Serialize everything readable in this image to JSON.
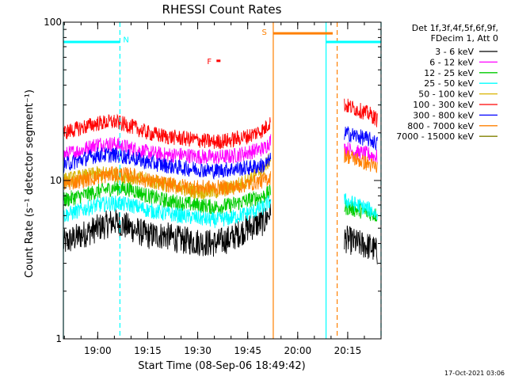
{
  "chart_data": {
    "type": "line",
    "title": "RHESSI Count Rates",
    "xlabel": "Start Time (08-Sep-06 18:49:42)",
    "ylabel": "Count Rate (s⁻¹ detector segment⁻¹)",
    "y_scale": "log",
    "ylim": [
      1,
      100
    ],
    "y_ticks": [
      {
        "value": 1,
        "label": "1"
      },
      {
        "value": 10,
        "label": "10"
      },
      {
        "value": 100,
        "label": "100"
      }
    ],
    "x_time_range": [
      "18:49:42",
      "20:25:00"
    ],
    "x_ticks": [
      {
        "time": "19:00",
        "label": "19:00"
      },
      {
        "time": "19:15",
        "label": "19:15"
      },
      {
        "time": "19:30",
        "label": "19:30"
      },
      {
        "time": "19:45",
        "label": "19:45"
      },
      {
        "time": "20:00",
        "label": "20:00"
      },
      {
        "time": "20:15",
        "label": "20:15"
      }
    ],
    "grid": false,
    "legend_position": "right",
    "legend_header": [
      "Det 1f,3f,4f,5f,6f,9f,",
      "FDecim 1, Att 0"
    ],
    "data_gap": [
      "19:52:40",
      "20:13:40"
    ],
    "series": [
      {
        "name": "3 - 6 keV",
        "color": "#000000",
        "values": [
          [
            "18:49:42",
            4.0
          ],
          [
            "18:55",
            4.5
          ],
          [
            "19:00",
            5.0
          ],
          [
            "19:05",
            5.5
          ],
          [
            "19:10",
            5.0
          ],
          [
            "19:15",
            4.5
          ],
          [
            "19:20",
            4.5
          ],
          [
            "19:25",
            4.2
          ],
          [
            "19:30",
            4.1
          ],
          [
            "19:35",
            4.0
          ],
          [
            "19:40",
            4.3
          ],
          [
            "19:45",
            5.0
          ],
          [
            "19:50",
            5.5
          ],
          [
            "19:52",
            6.5
          ],
          [
            "20:14",
            4.3
          ],
          [
            "20:18",
            4.0
          ],
          [
            "20:22",
            3.8
          ],
          [
            "20:24",
            3.5
          ]
        ]
      },
      {
        "name": "6 - 12 keV",
        "color": "#ff00ff",
        "values": [
          [
            "18:49:42",
            14.5
          ],
          [
            "18:55",
            15.5
          ],
          [
            "19:00",
            17.0
          ],
          [
            "19:05",
            17.0
          ],
          [
            "19:10",
            16.0
          ],
          [
            "19:15",
            15.0
          ],
          [
            "19:20",
            14.5
          ],
          [
            "19:25",
            14.5
          ],
          [
            "19:30",
            14.2
          ],
          [
            "19:35",
            14.0
          ],
          [
            "19:40",
            14.2
          ],
          [
            "19:45",
            15.0
          ],
          [
            "19:50",
            16.0
          ],
          [
            "19:52",
            18.0
          ],
          [
            "20:14",
            16.0
          ],
          [
            "20:18",
            15.0
          ],
          [
            "20:22",
            14.5
          ],
          [
            "20:24",
            14.0
          ]
        ]
      },
      {
        "name": "12 - 25 keV",
        "color": "#00cc00",
        "values": [
          [
            "18:49:42",
            7.5
          ],
          [
            "18:55",
            8.0
          ],
          [
            "19:00",
            8.5
          ],
          [
            "19:05",
            9.0
          ],
          [
            "19:10",
            8.8
          ],
          [
            "19:15",
            8.0
          ],
          [
            "19:20",
            7.5
          ],
          [
            "19:25",
            7.2
          ],
          [
            "19:30",
            7.0
          ],
          [
            "19:35",
            6.8
          ],
          [
            "19:40",
            7.0
          ],
          [
            "19:45",
            7.5
          ],
          [
            "19:50",
            8.0
          ],
          [
            "19:52",
            8.5
          ],
          [
            "20:14",
            6.8
          ],
          [
            "20:18",
            6.5
          ],
          [
            "20:22",
            6.2
          ],
          [
            "20:24",
            6.0
          ]
        ]
      },
      {
        "name": "25 - 50 keV",
        "color": "#00ffff",
        "values": [
          [
            "18:49:42",
            6.0
          ],
          [
            "18:55",
            6.5
          ],
          [
            "19:00",
            7.0
          ],
          [
            "19:05",
            7.2
          ],
          [
            "19:10",
            7.0
          ],
          [
            "19:15",
            6.5
          ],
          [
            "19:20",
            6.2
          ],
          [
            "19:25",
            6.0
          ],
          [
            "19:30",
            5.8
          ],
          [
            "19:35",
            5.6
          ],
          [
            "19:40",
            5.8
          ],
          [
            "19:45",
            6.2
          ],
          [
            "19:50",
            6.8
          ],
          [
            "19:52",
            7.5
          ],
          [
            "20:14",
            7.5
          ],
          [
            "20:18",
            7.0
          ],
          [
            "20:22",
            6.5
          ],
          [
            "20:24",
            6.0
          ]
        ]
      },
      {
        "name": "50 - 100 keV",
        "color": "#d9b300",
        "values": [
          [
            "18:49:42",
            10.0
          ],
          [
            "18:55",
            10.5
          ],
          [
            "19:00",
            11.0
          ],
          [
            "19:05",
            11.0
          ],
          [
            "19:10",
            10.5
          ],
          [
            "19:15",
            10.0
          ],
          [
            "19:20",
            9.5
          ],
          [
            "19:25",
            9.0
          ],
          [
            "19:30",
            8.5
          ],
          [
            "19:35",
            8.5
          ],
          [
            "19:40",
            9.0
          ],
          [
            "19:45",
            10.0
          ],
          [
            "19:50",
            12.0
          ],
          [
            "19:52",
            14.0
          ]
        ]
      },
      {
        "name": "100 - 300 keV",
        "color": "#ff0000",
        "values": [
          [
            "18:49:42",
            20.0
          ],
          [
            "18:55",
            21.5
          ],
          [
            "19:00",
            23.0
          ],
          [
            "19:05",
            23.5
          ],
          [
            "19:10",
            22.0
          ],
          [
            "19:15",
            20.0
          ],
          [
            "19:20",
            19.0
          ],
          [
            "19:25",
            18.5
          ],
          [
            "19:30",
            18.0
          ],
          [
            "19:35",
            17.5
          ],
          [
            "19:40",
            18.0
          ],
          [
            "19:45",
            19.0
          ],
          [
            "19:50",
            21.0
          ],
          [
            "19:52",
            24.0
          ],
          [
            "20:14",
            30.0
          ],
          [
            "20:18",
            28.0
          ],
          [
            "20:22",
            26.0
          ],
          [
            "20:24",
            24.0
          ]
        ]
      },
      {
        "name": "300 - 800 keV",
        "color": "#0000ff",
        "values": [
          [
            "18:49:42",
            12.5
          ],
          [
            "18:55",
            13.5
          ],
          [
            "19:00",
            14.5
          ],
          [
            "19:05",
            14.5
          ],
          [
            "19:10",
            14.0
          ],
          [
            "19:15",
            13.0
          ],
          [
            "19:20",
            12.5
          ],
          [
            "19:25",
            12.0
          ],
          [
            "19:30",
            11.8
          ],
          [
            "19:35",
            11.5
          ],
          [
            "19:40",
            11.8
          ],
          [
            "19:45",
            12.0
          ],
          [
            "19:50",
            12.5
          ],
          [
            "19:52",
            13.5
          ],
          [
            "20:14",
            20.0
          ],
          [
            "20:18",
            19.0
          ],
          [
            "20:22",
            18.0
          ],
          [
            "20:24",
            17.0
          ]
        ]
      },
      {
        "name": "800 - 7000 keV",
        "color": "#ff8000",
        "values": [
          [
            "18:49:42",
            9.5
          ],
          [
            "18:55",
            10.0
          ],
          [
            "19:00",
            10.5
          ],
          [
            "19:05",
            11.0
          ],
          [
            "19:10",
            10.8
          ],
          [
            "19:15",
            10.0
          ],
          [
            "19:20",
            9.5
          ],
          [
            "19:25",
            9.2
          ],
          [
            "19:30",
            9.0
          ],
          [
            "19:35",
            9.0
          ],
          [
            "19:40",
            9.0
          ],
          [
            "19:45",
            9.5
          ],
          [
            "19:50",
            10.0
          ],
          [
            "19:52",
            10.5
          ],
          [
            "20:14",
            14.5
          ],
          [
            "20:18",
            13.5
          ],
          [
            "20:22",
            12.5
          ],
          [
            "20:24",
            12.0
          ]
        ]
      },
      {
        "name": "7000 - 15000 keV",
        "color": "#808000",
        "values": []
      }
    ],
    "attenuator_bars": [
      {
        "color": "#00ffff",
        "start": "18:49:42",
        "end": "19:06:40",
        "value": 75
      },
      {
        "color": "#ff8000",
        "start": "19:52:40",
        "end": "20:10:30",
        "value": 85
      },
      {
        "color": "#00ffff",
        "start": "20:08:30",
        "end": "20:25:00",
        "value": 75
      }
    ],
    "vertical_markers": [
      {
        "color": "#00ffff",
        "style": "dashed",
        "time": "19:06:40"
      },
      {
        "color": "#00ffff",
        "style": "solid",
        "time": "18:49:42"
      },
      {
        "color": "#ff8000",
        "style": "solid",
        "time": "19:52:40"
      },
      {
        "color": "#00ffff",
        "style": "solid",
        "time": "20:08:30"
      },
      {
        "color": "#ff8000",
        "style": "dashed",
        "time": "20:11:50"
      },
      {
        "color": "#00ffff",
        "style": "dashed",
        "time": "20:25:00"
      }
    ],
    "annotations": [
      {
        "text": "N",
        "color": "#00ffff",
        "time": "19:08:30",
        "value": 78
      },
      {
        "text": "S",
        "color": "#ff8000",
        "time": "19:50:00",
        "value": 87
      },
      {
        "text": "F",
        "color": "#ff0000",
        "time": "19:33:30",
        "value": 57
      }
    ],
    "timestamp": "17-Oct-2021 03:06"
  }
}
